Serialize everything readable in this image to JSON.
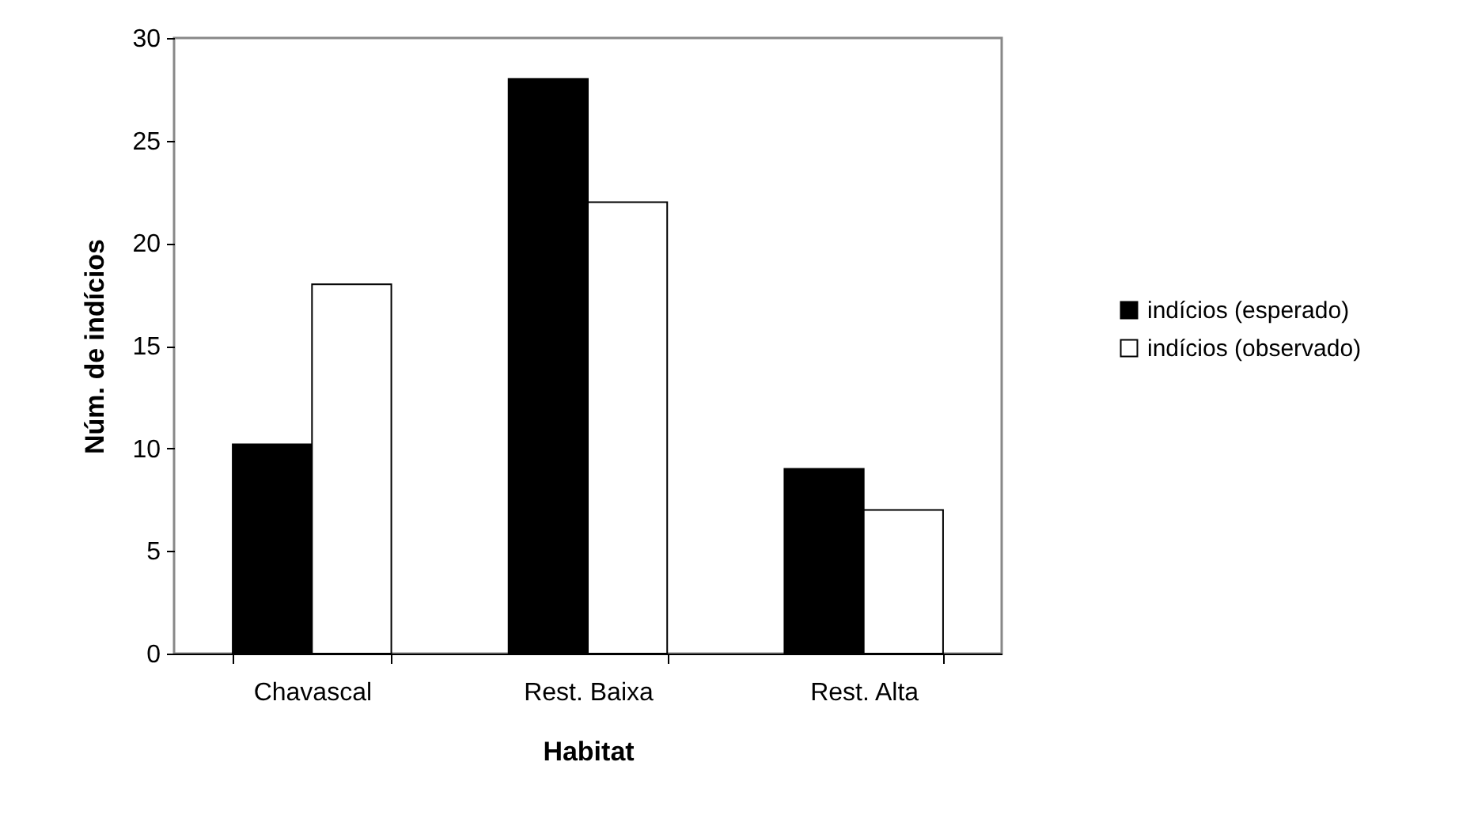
{
  "chart_data": {
    "type": "bar",
    "xlabel": "Habitat",
    "ylabel": "Núm. de indícios",
    "categories": [
      "Chavascal",
      "Rest. Baixa",
      "Rest. Alta"
    ],
    "series": [
      {
        "name": "indícios (esperado)",
        "color": "#000000",
        "values": [
          10.2,
          28,
          9
        ]
      },
      {
        "name": "indícios (observado)",
        "color": "#ffffff",
        "values": [
          18,
          22,
          7
        ]
      }
    ],
    "ylim": [
      0,
      30
    ],
    "yticks": [
      0,
      5,
      10,
      15,
      20,
      25,
      30
    ],
    "grid": false,
    "legend": "right"
  }
}
